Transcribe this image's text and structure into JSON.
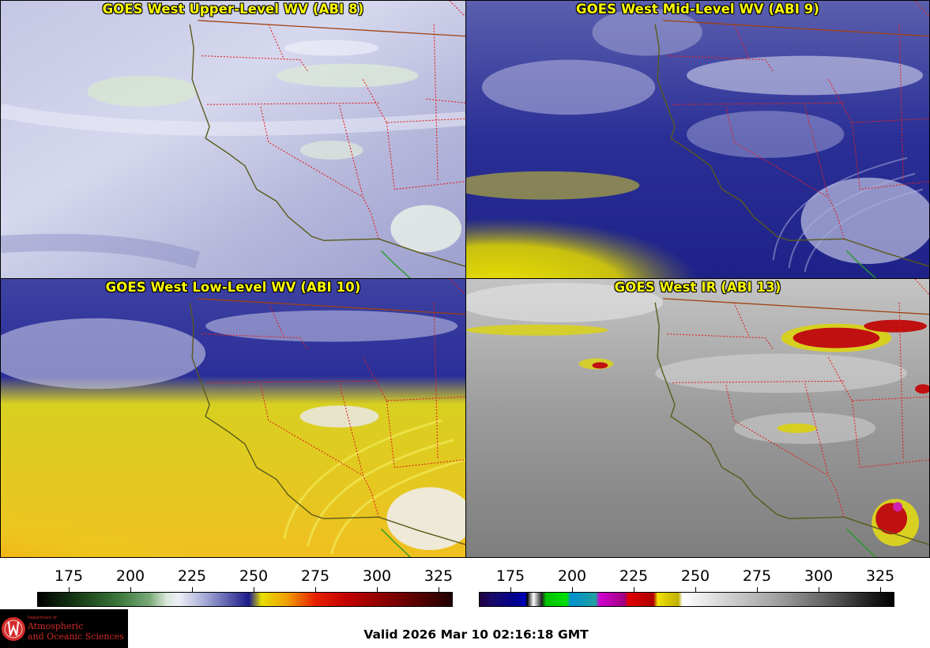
{
  "panels": [
    {
      "title": "GOES West Upper-Level WV (ABI 8)"
    },
    {
      "title": "GOES West Mid-Level WV (ABI 9)"
    },
    {
      "title": "GOES West Low-Level WV (ABI 10)"
    },
    {
      "title": "GOES West IR (ABI 13)"
    }
  ],
  "colorbars": [
    {
      "ticks": [
        "175",
        "200",
        "225",
        "250",
        "275",
        "300",
        "325"
      ]
    },
    {
      "ticks": [
        "175",
        "200",
        "225",
        "250",
        "275",
        "300",
        "325"
      ]
    }
  ],
  "logo": {
    "department": "Department of",
    "name_line1": "Atmospheric",
    "name_line2": "and Oceanic Sciences",
    "seal_letter": "W"
  },
  "valid_time": "Valid 2026 Mar 10 02:16:18 GMT",
  "colors": {
    "title_text": "#ffff00",
    "border_red": "#e0201e",
    "coast": "#5a5a1a",
    "mexico_border": "#2a9a2a",
    "logo_red": "#d42a2a"
  }
}
